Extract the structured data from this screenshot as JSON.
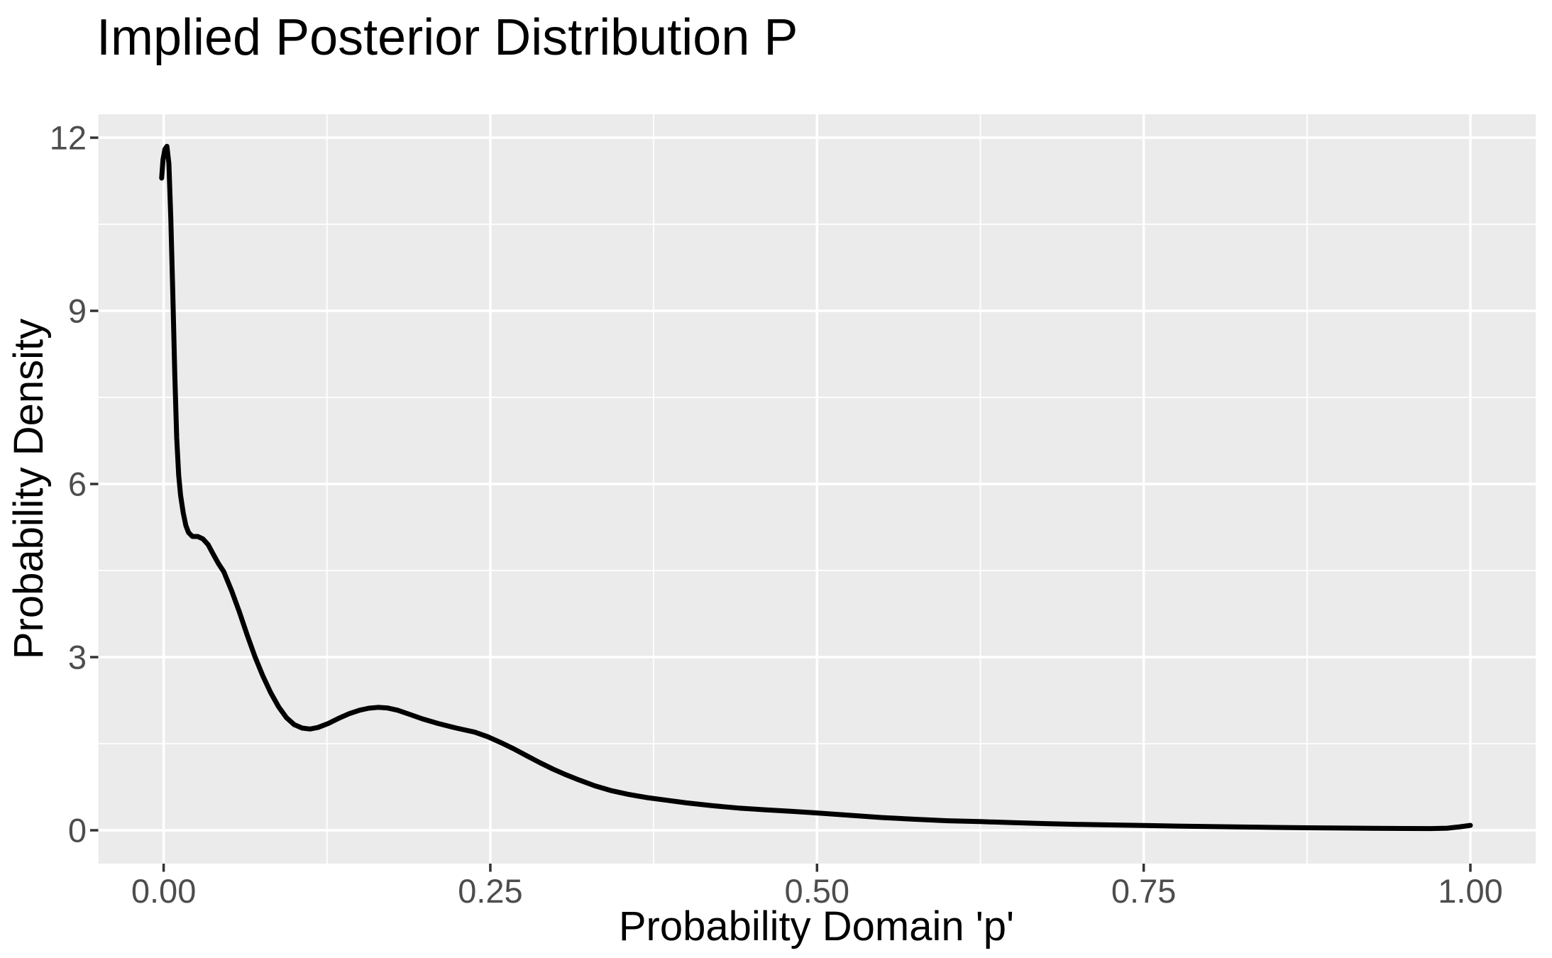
{
  "title": "Implied Posterior Distribution P",
  "chart_data": {
    "type": "line",
    "title": "Implied Posterior Distribution P",
    "xlabel": "Probability Domain 'p'",
    "ylabel": "Probability Density",
    "x_ticks": [
      "0.00",
      "0.25",
      "0.50",
      "0.75",
      "1.00"
    ],
    "x_tick_values": [
      0,
      0.25,
      0.5,
      0.75,
      1.0
    ],
    "y_ticks": [
      "0",
      "3",
      "6",
      "9",
      "12"
    ],
    "y_tick_values": [
      0,
      3,
      6,
      9,
      12
    ],
    "x_minor_values": [
      0.125,
      0.375,
      0.625,
      0.875
    ],
    "y_minor_values": [
      1.5,
      4.5,
      7.5,
      10.5
    ],
    "xlim": [
      -0.05,
      1.05
    ],
    "ylim": [
      -0.59,
      12.42
    ],
    "grid": "major-minor white on gray panel",
    "legend_position": "none",
    "colors": {
      "panel_bg": "#EBEBEB",
      "grid": "#FFFFFF",
      "curve": "#000000",
      "axis_text": "#4D4D4D",
      "tick_mark": "#333333",
      "title_text": "#000000"
    },
    "series": [
      {
        "name": "posterior-density-curve",
        "points": [
          [
            -0.0015,
            11.3
          ],
          [
            -0.0005,
            11.62
          ],
          [
            0.001,
            11.8
          ],
          [
            0.0025,
            11.85
          ],
          [
            0.004,
            11.55
          ],
          [
            0.0055,
            10.6
          ],
          [
            0.007,
            9.3
          ],
          [
            0.0085,
            7.9
          ],
          [
            0.01,
            6.8
          ],
          [
            0.0115,
            6.15
          ],
          [
            0.013,
            5.8
          ],
          [
            0.015,
            5.5
          ],
          [
            0.017,
            5.28
          ],
          [
            0.019,
            5.16
          ],
          [
            0.022,
            5.09
          ],
          [
            0.026,
            5.09
          ],
          [
            0.03,
            5.05
          ],
          [
            0.034,
            4.95
          ],
          [
            0.038,
            4.78
          ],
          [
            0.042,
            4.62
          ],
          [
            0.046,
            4.48
          ],
          [
            0.052,
            4.15
          ],
          [
            0.058,
            3.78
          ],
          [
            0.064,
            3.38
          ],
          [
            0.07,
            3.0
          ],
          [
            0.076,
            2.67
          ],
          [
            0.082,
            2.38
          ],
          [
            0.088,
            2.14
          ],
          [
            0.094,
            1.95
          ],
          [
            0.1,
            1.83
          ],
          [
            0.106,
            1.77
          ],
          [
            0.112,
            1.755
          ],
          [
            0.118,
            1.78
          ],
          [
            0.126,
            1.85
          ],
          [
            0.134,
            1.94
          ],
          [
            0.142,
            2.02
          ],
          [
            0.15,
            2.08
          ],
          [
            0.157,
            2.115
          ],
          [
            0.164,
            2.13
          ],
          [
            0.171,
            2.12
          ],
          [
            0.179,
            2.08
          ],
          [
            0.188,
            2.01
          ],
          [
            0.198,
            1.93
          ],
          [
            0.21,
            1.85
          ],
          [
            0.224,
            1.77
          ],
          [
            0.238,
            1.7
          ],
          [
            0.248,
            1.62
          ],
          [
            0.258,
            1.52
          ],
          [
            0.268,
            1.41
          ],
          [
            0.278,
            1.29
          ],
          [
            0.288,
            1.17
          ],
          [
            0.298,
            1.06
          ],
          [
            0.308,
            0.96
          ],
          [
            0.318,
            0.87
          ],
          [
            0.33,
            0.77
          ],
          [
            0.342,
            0.69
          ],
          [
            0.355,
            0.625
          ],
          [
            0.37,
            0.565
          ],
          [
            0.385,
            0.52
          ],
          [
            0.4,
            0.475
          ],
          [
            0.42,
            0.425
          ],
          [
            0.44,
            0.385
          ],
          [
            0.46,
            0.355
          ],
          [
            0.48,
            0.33
          ],
          [
            0.5,
            0.3
          ],
          [
            0.525,
            0.26
          ],
          [
            0.55,
            0.22
          ],
          [
            0.575,
            0.19
          ],
          [
            0.6,
            0.165
          ],
          [
            0.625,
            0.15
          ],
          [
            0.65,
            0.132
          ],
          [
            0.675,
            0.115
          ],
          [
            0.7,
            0.102
          ],
          [
            0.725,
            0.092
          ],
          [
            0.75,
            0.083
          ],
          [
            0.775,
            0.073
          ],
          [
            0.8,
            0.064
          ],
          [
            0.825,
            0.056
          ],
          [
            0.85,
            0.049
          ],
          [
            0.875,
            0.043
          ],
          [
            0.9,
            0.038
          ],
          [
            0.925,
            0.034
          ],
          [
            0.95,
            0.031
          ],
          [
            0.97,
            0.03
          ],
          [
            0.982,
            0.036
          ],
          [
            0.992,
            0.06
          ],
          [
            1.0,
            0.085
          ]
        ]
      }
    ],
    "annotations": {
      "peak": {
        "x": 0.0025,
        "y": 11.85
      },
      "local_min": {
        "x": 0.112,
        "y": 1.76
      },
      "local_max": {
        "x": 0.164,
        "y": 2.13
      }
    }
  }
}
